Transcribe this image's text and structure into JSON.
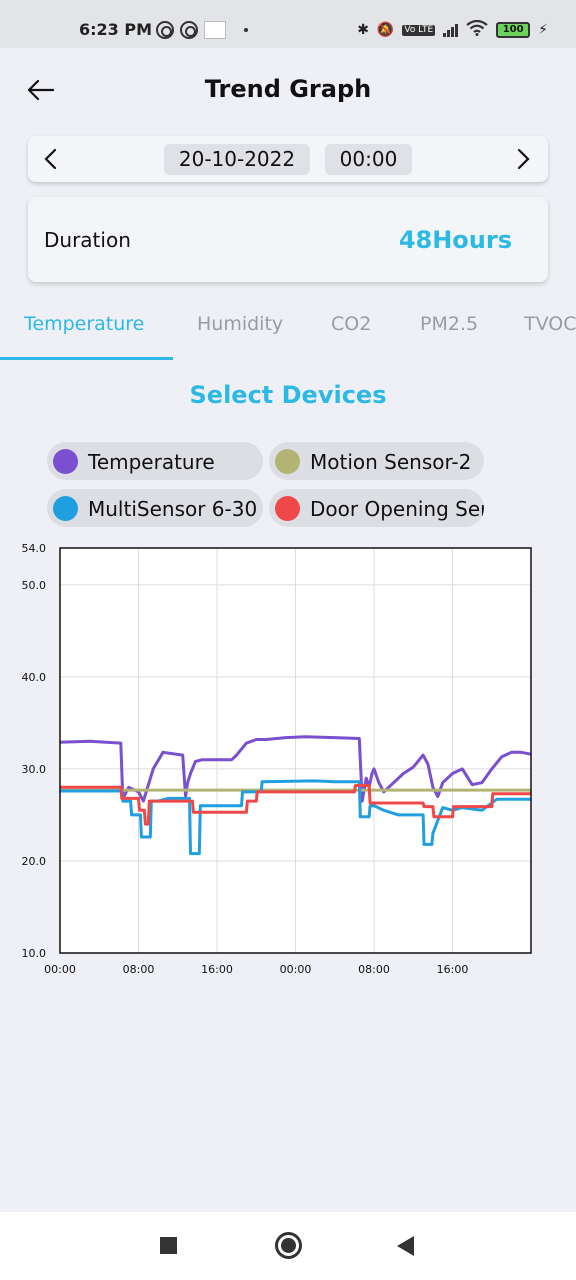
{
  "status_bar": {
    "time": "6:23 PM",
    "battery": "100",
    "volte": "Vo LTE"
  },
  "header": {
    "title": "Trend Graph"
  },
  "date_selector": {
    "date": "20-10-2022",
    "time": "00:00"
  },
  "duration": {
    "label": "Duration",
    "value": "48Hours"
  },
  "tabs": [
    {
      "label": "Temperature",
      "active": true
    },
    {
      "label": "Humidity",
      "active": false
    },
    {
      "label": "CO2",
      "active": false
    },
    {
      "label": "PM2.5",
      "active": false
    },
    {
      "label": "TVOC",
      "active": false
    }
  ],
  "select_devices_label": "Select Devices",
  "devices": [
    {
      "label": "Temperature",
      "color": "#7a4fd0"
    },
    {
      "label": "Motion Sensor-2",
      "color": "#b2b474"
    },
    {
      "label": "MultiSensor 6-30",
      "color": "#1f9fe0"
    },
    {
      "label": "Door Opening Sensor",
      "color": "#f04848"
    }
  ],
  "chart_data": {
    "type": "line",
    "ylim": [
      10.0,
      54.0
    ],
    "y_ticks": [
      "54.0",
      "50.0",
      "40.0",
      "30.0",
      "20.0",
      "10.0"
    ],
    "x_ticks": [
      "00:00",
      "08:00",
      "16:00",
      "00:00",
      "08:00",
      "16:00"
    ],
    "xlabel": "",
    "ylabel": "",
    "grid": true,
    "series": [
      {
        "color": "#7a4fd0",
        "x": [
          0,
          3,
          6.2,
          6.4,
          7,
          8,
          8.5,
          9.5,
          10.5,
          12.5,
          12.8,
          13,
          13.3,
          13.8,
          14.5,
          15.5,
          17.5,
          18,
          19,
          20,
          21,
          23,
          25,
          28,
          30.5,
          30.8,
          31.2,
          31.5,
          31.8,
          32,
          32.5,
          33,
          34,
          35,
          36,
          37,
          37.5,
          38,
          38.5,
          39,
          40,
          41,
          42,
          43,
          44,
          45,
          46,
          47,
          48
        ],
        "y": [
          32.9,
          33.0,
          32.8,
          26.8,
          28.0,
          27.5,
          26.5,
          30.0,
          31.8,
          31.5,
          27.0,
          28.5,
          29.5,
          30.8,
          31.0,
          31.0,
          31.0,
          31.5,
          32.8,
          33.2,
          33.2,
          33.4,
          33.5,
          33.4,
          33.3,
          26.5,
          29.0,
          28.0,
          29.5,
          30.0,
          28.5,
          27.5,
          28.5,
          29.5,
          30.2,
          31.5,
          30.5,
          28.0,
          27.0,
          28.5,
          29.5,
          30.0,
          28.3,
          28.5,
          30.0,
          31.3,
          31.8,
          31.8,
          31.6
        ]
      },
      {
        "color": "#b2b474",
        "x": [
          0,
          48
        ],
        "y": [
          27.7,
          27.7
        ]
      },
      {
        "color": "#1f9fe0",
        "x": [
          0,
          6.3,
          6.4,
          7.2,
          7.3,
          8.2,
          8.3,
          9.2,
          9.3,
          10.0,
          11.0,
          13.2,
          13.3,
          14.2,
          14.3,
          18.5,
          18.6,
          20.5,
          20.6,
          26,
          28,
          30.5,
          30.6,
          31.5,
          31.6,
          32.0,
          33.0,
          34.5,
          35.0,
          37.0,
          37.1,
          37.9,
          38.0,
          39.0,
          40.0,
          41.0,
          43.0,
          44.5,
          48
        ],
        "y": [
          27.6,
          27.6,
          26.5,
          26.5,
          25.0,
          25.0,
          22.6,
          22.6,
          26.5,
          26.5,
          26.8,
          26.8,
          20.8,
          20.8,
          26.0,
          26.0,
          27.5,
          27.5,
          28.6,
          28.7,
          28.6,
          28.6,
          24.8,
          24.8,
          26.0,
          26.0,
          25.5,
          25.0,
          25.0,
          25.0,
          21.8,
          21.8,
          23.0,
          25.8,
          25.5,
          25.8,
          25.5,
          26.7,
          26.7
        ]
      },
      {
        "color": "#f04848",
        "x": [
          0,
          6.2,
          6.3,
          8.0,
          8.1,
          8.6,
          8.7,
          9.0,
          9.1,
          13.5,
          13.6,
          19.0,
          19.1,
          20.0,
          20.1,
          30.0,
          30.1,
          31.5,
          31.6,
          37.0,
          37.1,
          38.0,
          38.1,
          40.0,
          40.1,
          44.0,
          44.1,
          48
        ],
        "y": [
          28.0,
          28.0,
          26.8,
          26.8,
          25.5,
          25.5,
          24.0,
          24.0,
          26.5,
          26.5,
          25.3,
          25.3,
          26.5,
          26.5,
          27.5,
          27.5,
          28.2,
          28.2,
          26.3,
          26.3,
          25.9,
          25.9,
          24.8,
          24.8,
          25.9,
          25.9,
          27.3,
          27.3
        ]
      }
    ]
  }
}
